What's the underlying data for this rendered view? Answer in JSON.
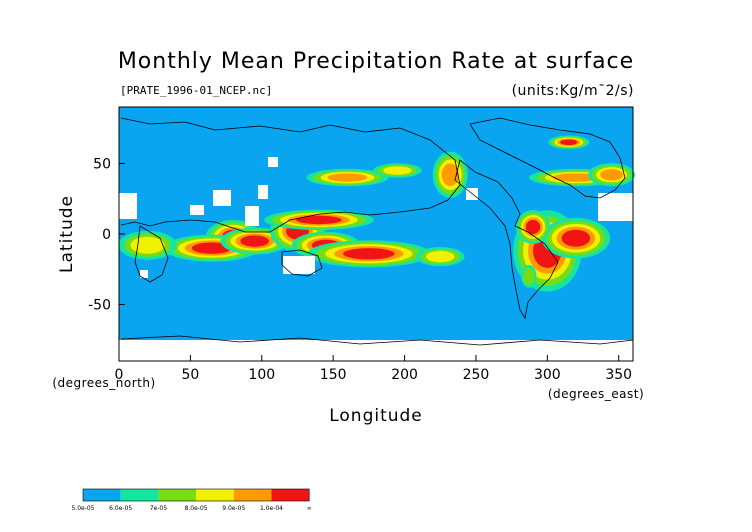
{
  "chart_data": {
    "type": "heatmap",
    "title": "Monthly Mean Precipitation Rate at surface",
    "subtitle": "[PRATE_1996-01_NCEP.nc]",
    "units_label": "(units:Kg/m¯2/s)",
    "xlabel": "Longitude",
    "ylabel": "Latitude",
    "x_unit_label": "(degrees_east)",
    "y_unit_label": "(degrees_north)",
    "xlim": [
      0,
      360
    ],
    "ylim": [
      -90,
      90
    ],
    "x_ticks": [
      0,
      50,
      100,
      150,
      200,
      250,
      300,
      350
    ],
    "y_ticks": [
      -50,
      0,
      50
    ],
    "colors": {
      "background": "#0aa5f0",
      "bin1": "#14e6a0",
      "bin2": "#78dc14",
      "bin3": "#f0f000",
      "bin4": "#ff9b00",
      "bin5": "#f01414",
      "coast": "#000000",
      "missing": "#ffffff"
    },
    "colorbar": {
      "colors": [
        "#0aa5f0",
        "#14e6a0",
        "#78dc14",
        "#f0f000",
        "#ff9b00",
        "#f01414"
      ],
      "labels": [
        "5.0e-05",
        "6.0e-05",
        "7e-05",
        "8.0e-05",
        "9.0e-05",
        "1.0e-04",
        "∞"
      ]
    },
    "high_precip_regions": [
      {
        "lon": 80,
        "lat": -2,
        "rx": 8,
        "ry": 5,
        "level": 5
      },
      {
        "lon": 65,
        "lat": -10,
        "rx": 14,
        "ry": 4,
        "level": 5
      },
      {
        "lon": 95,
        "lat": -5,
        "rx": 10,
        "ry": 4,
        "level": 5
      },
      {
        "lon": 125,
        "lat": 2,
        "rx": 8,
        "ry": 6,
        "level": 5
      },
      {
        "lon": 140,
        "lat": 10,
        "rx": 16,
        "ry": 3,
        "level": 5
      },
      {
        "lon": 145,
        "lat": -8,
        "rx": 10,
        "ry": 4,
        "level": 5
      },
      {
        "lon": 175,
        "lat": -14,
        "rx": 18,
        "ry": 4,
        "level": 5
      },
      {
        "lon": 225,
        "lat": -16,
        "rx": 10,
        "ry": 4,
        "level": 3
      },
      {
        "lon": 300,
        "lat": -12,
        "rx": 10,
        "ry": 12,
        "level": 5
      },
      {
        "lon": 320,
        "lat": -3,
        "rx": 10,
        "ry": 6,
        "level": 5
      },
      {
        "lon": 290,
        "lat": 5,
        "rx": 5,
        "ry": 5,
        "level": 5
      },
      {
        "lon": 287,
        "lat": -30,
        "rx": 4,
        "ry": 6,
        "level": 2
      },
      {
        "lon": 20,
        "lat": -8,
        "rx": 12,
        "ry": 6,
        "level": 3
      },
      {
        "lon": 160,
        "lat": 40,
        "rx": 14,
        "ry": 3,
        "level": 4
      },
      {
        "lon": 195,
        "lat": 45,
        "rx": 10,
        "ry": 3,
        "level": 3
      },
      {
        "lon": 232,
        "lat": 42,
        "rx": 6,
        "ry": 8,
        "level": 4
      },
      {
        "lon": 320,
        "lat": 40,
        "rx": 16,
        "ry": 3,
        "level": 4
      },
      {
        "lon": 345,
        "lat": 42,
        "rx": 8,
        "ry": 4,
        "level": 4
      },
      {
        "lon": 315,
        "lat": 65,
        "rx": 6,
        "ry": 2,
        "level": 5
      }
    ]
  }
}
